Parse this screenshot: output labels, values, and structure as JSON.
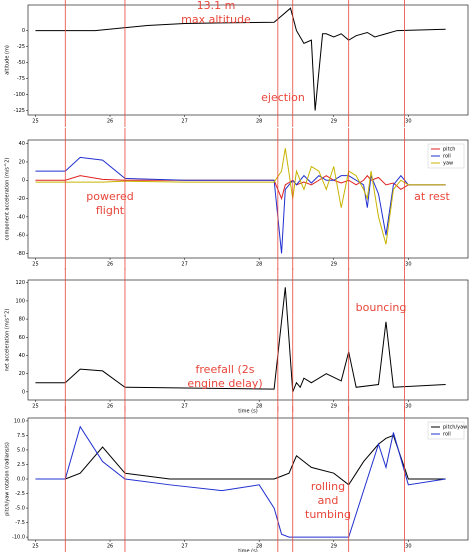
{
  "chart_data": [
    {
      "type": "line",
      "ylabel": "altitude (m)",
      "x": [
        25,
        25.8,
        26.5,
        27,
        27.5,
        28.2,
        28.42,
        28.5,
        28.6,
        28.7,
        28.75,
        28.85,
        28.9,
        29.0,
        29.1,
        29.2,
        29.3,
        29.45,
        29.55,
        29.7,
        29.85,
        30.5
      ],
      "series": [
        {
          "name": "altitude",
          "color": "#000000",
          "values": [
            0,
            0,
            8,
            11,
            12,
            13,
            35,
            0,
            -20,
            -15,
            -125,
            -5,
            -5,
            -10,
            -5,
            -15,
            -8,
            -3,
            -10,
            -5,
            0,
            2
          ]
        }
      ],
      "xlim": [
        24.9,
        30.8
      ],
      "ylim": [
        -132,
        40
      ],
      "xticks": [
        25,
        26,
        27,
        28,
        29,
        30
      ],
      "yticks": [
        0,
        -25,
        -50,
        -75,
        -100,
        -125
      ],
      "vlines": [
        25.4,
        26.2,
        28.25,
        28.45,
        29.2,
        29.95
      ],
      "vline_color": "#e8463a",
      "annotations": [
        [
          "13.1 m",
          "max altitude"
        ],
        [
          "ejection"
        ]
      ]
    },
    {
      "type": "line",
      "ylabel": "component acceleration (m/s^2)",
      "x": [
        25,
        25.4,
        25.6,
        25.9,
        26.2,
        27,
        28.2,
        28.3,
        28.35,
        28.45,
        28.5,
        28.6,
        28.7,
        28.8,
        28.9,
        29.0,
        29.1,
        29.2,
        29.3,
        29.4,
        29.45,
        29.5,
        29.6,
        29.7,
        29.8,
        29.9,
        30,
        30.5
      ],
      "series": [
        {
          "name": "pitch",
          "color": "#e02020",
          "values": [
            0,
            0,
            5,
            1,
            0,
            0,
            0,
            -20,
            -5,
            0,
            -5,
            -2,
            -5,
            0,
            5,
            0,
            -3,
            0,
            -5,
            0,
            5,
            0,
            3,
            -5,
            -3,
            -10,
            -5,
            -5
          ]
        },
        {
          "name": "roll",
          "color": "#2030d0",
          "values": [
            10,
            10,
            25,
            22,
            2,
            0,
            0,
            -80,
            -10,
            0,
            -5,
            5,
            -3,
            5,
            0,
            0,
            5,
            5,
            0,
            -5,
            -30,
            5,
            -15,
            -60,
            -5,
            5,
            -5,
            -5
          ]
        },
        {
          "name": "yaw",
          "color": "#c8b400",
          "values": [
            -2,
            -2,
            -2,
            -2,
            -1,
            -2,
            -2,
            10,
            35,
            -20,
            10,
            -10,
            15,
            10,
            -10,
            15,
            -30,
            10,
            5,
            -10,
            -20,
            10,
            -40,
            -70,
            -10,
            0,
            -5,
            -5
          ]
        }
      ],
      "legend": "upper right",
      "xlim": [
        24.9,
        30.8
      ],
      "ylim": [
        -85,
        44
      ],
      "xticks": [
        25,
        26,
        27,
        28,
        29,
        30
      ],
      "yticks": [
        40,
        20,
        0,
        -20,
        -40,
        -60,
        -80
      ],
      "vlines": [
        25.4,
        26.2,
        28.25,
        28.45,
        29.2,
        29.95
      ],
      "vline_color": "#e8463a",
      "annotations": [
        [
          "powered",
          "flight"
        ],
        [
          "at rest"
        ]
      ]
    },
    {
      "type": "line",
      "ylabel": "net acceleration (m/s^2)",
      "xlabel": "time (s)",
      "x": [
        25,
        25.4,
        25.6,
        25.9,
        26.2,
        28.2,
        28.35,
        28.45,
        28.5,
        28.55,
        28.6,
        28.7,
        28.9,
        29.1,
        29.2,
        29.3,
        29.6,
        29.7,
        29.8,
        30.5
      ],
      "series": [
        {
          "name": "net",
          "color": "#000000",
          "values": [
            10,
            10,
            25,
            23,
            5,
            3,
            115,
            0,
            10,
            5,
            15,
            10,
            20,
            12,
            44,
            5,
            8,
            77,
            5,
            8
          ]
        }
      ],
      "xlim": [
        24.9,
        30.8
      ],
      "ylim": [
        -9,
        123
      ],
      "xticks": [
        25,
        26,
        27,
        28,
        29,
        30
      ],
      "yticks": [
        0,
        20,
        40,
        60,
        80,
        100,
        120
      ],
      "vlines": [
        25.4,
        26.2,
        28.25,
        28.45,
        29.2,
        29.95
      ],
      "vline_color": "#e8463a",
      "annotations": [
        [
          "freefall (2s",
          "engine delay)"
        ],
        [
          "bouncing"
        ]
      ]
    },
    {
      "type": "line",
      "ylabel": "pitch/yaw rotation (radians/s)",
      "xlabel": "time (s)",
      "x": [
        25,
        25.4,
        25.6,
        25.9,
        26.2,
        26.8,
        27.5,
        28.0,
        28.2,
        28.3,
        28.4,
        28.5,
        28.7,
        29.0,
        29.2,
        29.3,
        29.4,
        29.6,
        29.7,
        29.8,
        30.0,
        30.5
      ],
      "series": [
        {
          "name": "pitch/yaw",
          "color": "#000000",
          "values": [
            0,
            0,
            1,
            5.5,
            1,
            0,
            0,
            0,
            0,
            0.5,
            1,
            4,
            2,
            1,
            -1,
            1,
            3,
            6,
            7,
            7.5,
            0,
            0
          ]
        },
        {
          "name": "roll",
          "color": "#2030d0",
          "values": [
            0,
            0,
            9,
            3,
            0,
            -1,
            -2,
            -1,
            -5,
            -9.5,
            -10,
            -10,
            -10,
            -10,
            -10,
            -6,
            -2,
            6,
            2,
            8,
            -1,
            0
          ]
        }
      ],
      "legend": "upper right",
      "xlim": [
        24.9,
        30.8
      ],
      "ylim": [
        -10.5,
        10.5
      ],
      "xticks": [
        25,
        26,
        27,
        28,
        29,
        30
      ],
      "yticks": [
        {
          "value": 10,
          "label": "10.0"
        },
        7.5,
        {
          "value": 5,
          "label": "5.0"
        },
        2.5,
        {
          "value": 0,
          "label": "0.0"
        },
        -2.5,
        {
          "value": -5,
          "label": "-5.0"
        },
        -7.5,
        {
          "value": -10,
          "label": "-10.0"
        }
      ],
      "vlines": [
        25.4,
        26.2,
        28.25,
        28.45,
        29.2,
        29.95
      ],
      "vline_color": "#e8463a",
      "annotations": [
        [
          "rolling",
          "and",
          "tumbing"
        ]
      ]
    }
  ]
}
